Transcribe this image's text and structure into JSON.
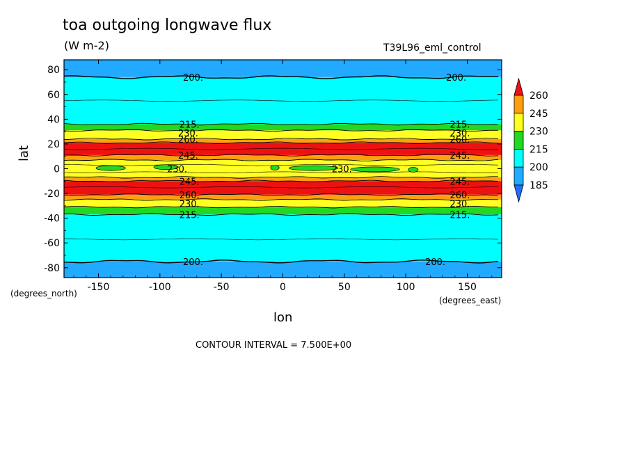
{
  "header": {
    "title": "toa outgoing longwave flux",
    "units": "(W m-2)",
    "dataset": "T39L96_eml_control"
  },
  "footer": {
    "contour_interval": "CONTOUR INTERVAL = 7.500E+00"
  },
  "chart_data": {
    "type": "heatmap",
    "title": "toa outgoing longwave flux",
    "subtitle": "(W m-2)",
    "xlabel": "lon",
    "ylabel": "lat",
    "x_units": "(degrees_east)",
    "y_units": "(degrees_north)",
    "xlim": [
      -178,
      178
    ],
    "ylim": [
      -88,
      88
    ],
    "x_ticks": [
      -150,
      -100,
      -50,
      0,
      50,
      100,
      150
    ],
    "x_tick_labels": [
      "-150",
      "-100",
      "-50",
      "0",
      "50",
      "100",
      "150"
    ],
    "y_ticks": [
      80,
      60,
      40,
      20,
      0,
      -20,
      -40,
      -60,
      -80
    ],
    "y_tick_labels": [
      "80",
      "60",
      "40",
      "20",
      "0",
      "-20",
      "-40",
      "-60",
      "-80"
    ],
    "colorbar": {
      "levels": [
        185,
        200,
        215,
        230,
        245,
        260
      ],
      "labels": [
        "260",
        "245",
        "230",
        "215",
        "200",
        "185"
      ],
      "colors": {
        "below_185": "#1f6fff",
        "185_200": "#21aaff",
        "200_215": "#00ffff",
        "215_230": "#22d922",
        "230_245": "#ffff22",
        "245_260": "#ff9f0f",
        "above_260": "#ee1111"
      }
    },
    "zonal_mean_bands": [
      {
        "lat_from": 88,
        "lat_to": 74,
        "value_range": "185-200"
      },
      {
        "lat_from": 74,
        "lat_to": 36,
        "value_range": "200-215"
      },
      {
        "lat_from": 36,
        "lat_to": 31,
        "value_range": "215-230"
      },
      {
        "lat_from": 31,
        "lat_to": 24,
        "value_range": "230-245"
      },
      {
        "lat_from": 24,
        "lat_to": 21,
        "value_range": "245-260"
      },
      {
        "lat_from": 21,
        "lat_to": 11,
        "value_range": ">260"
      },
      {
        "lat_from": 11,
        "lat_to": 7,
        "value_range": "245-260"
      },
      {
        "lat_from": 7,
        "lat_to": -7,
        "value_range": "230-245"
      },
      {
        "lat_from": -7,
        "lat_to": -10,
        "value_range": "245-260"
      },
      {
        "lat_from": -10,
        "lat_to": -21,
        "value_range": ">260"
      },
      {
        "lat_from": -21,
        "lat_to": -25,
        "value_range": "245-260"
      },
      {
        "lat_from": -25,
        "lat_to": -31,
        "value_range": "230-245"
      },
      {
        "lat_from": -31,
        "lat_to": -37,
        "value_range": "215-230"
      },
      {
        "lat_from": -37,
        "lat_to": -75,
        "value_range": "200-215"
      },
      {
        "lat_from": -75,
        "lat_to": -88,
        "value_range": "185-200"
      }
    ],
    "contour_labels": [
      "200.",
      "200.",
      "215.",
      "215.",
      "230.",
      "230.",
      "260.",
      "260.",
      "245.",
      "245.",
      "230.",
      "230.",
      "245.",
      "245.",
      "260.",
      "260.",
      "230.",
      "230.",
      "215.",
      "215.",
      "200.",
      "200."
    ],
    "contour_interval": 7.5
  }
}
